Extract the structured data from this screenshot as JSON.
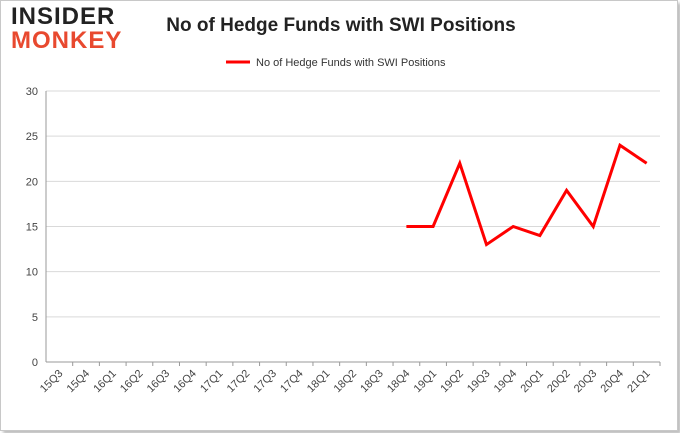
{
  "logo": {
    "line1": "INSIDER",
    "line2": "MONKEY"
  },
  "chart_data": {
    "type": "line",
    "title": "No of Hedge Funds with SWI Positions",
    "xlabel": "",
    "ylabel": "",
    "categories": [
      "15Q3",
      "15Q4",
      "16Q1",
      "16Q2",
      "16Q3",
      "16Q4",
      "17Q1",
      "17Q2",
      "17Q3",
      "17Q4",
      "18Q1",
      "18Q2",
      "18Q3",
      "18Q4",
      "19Q1",
      "19Q2",
      "19Q3",
      "19Q4",
      "20Q1",
      "20Q2",
      "20Q3",
      "20Q4",
      "21Q1"
    ],
    "series": [
      {
        "name": "No of Hedge Funds with SWI Positions",
        "color": "#ff0000",
        "values": [
          null,
          null,
          null,
          null,
          null,
          null,
          null,
          null,
          null,
          null,
          null,
          null,
          null,
          15,
          15,
          22,
          13,
          15,
          14,
          19,
          15,
          24,
          22
        ]
      }
    ],
    "ylim": [
      0,
      30
    ],
    "yticks": [
      0,
      5,
      10,
      15,
      20,
      25,
      30
    ],
    "grid": true,
    "legend": "top-center"
  }
}
